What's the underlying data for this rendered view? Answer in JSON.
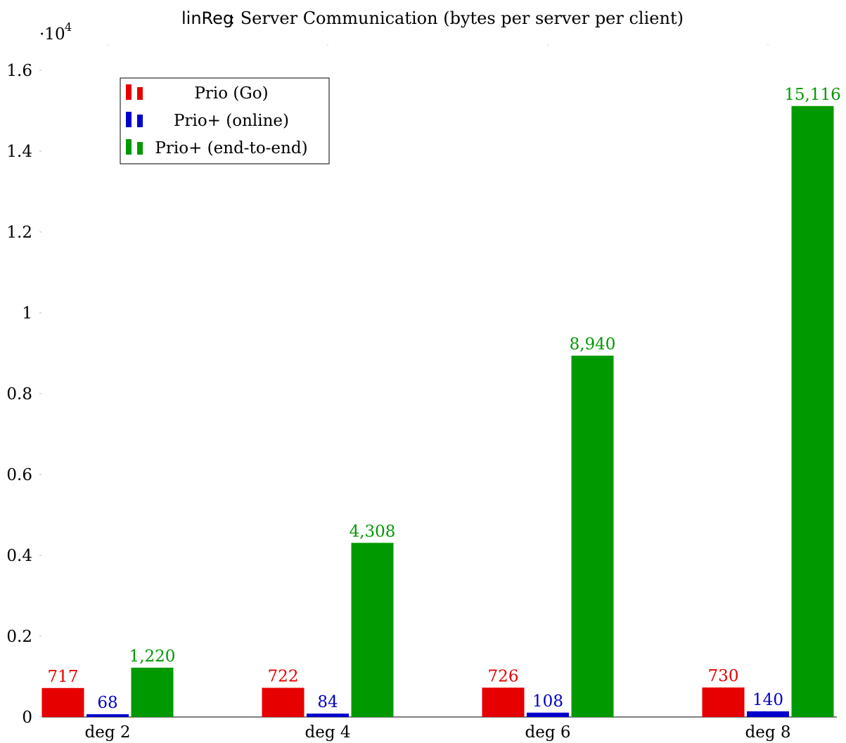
{
  "chart_data": {
    "type": "bar",
    "title_prefix": "linReg",
    "title_rest": ": Server Communication (bytes per server per client)",
    "scale_base": "·10",
    "scale_exp": "4",
    "categories": [
      "deg 2",
      "deg 4",
      "deg 6",
      "deg 8"
    ],
    "series": [
      {
        "name": "Prio (Go)",
        "color": "#e60000",
        "values": [
          717,
          722,
          726,
          730
        ],
        "labels": [
          "717",
          "722",
          "726",
          "730"
        ]
      },
      {
        "name": "Prio+ (online)",
        "color": "#0000cc",
        "values": [
          68,
          84,
          108,
          140
        ],
        "labels": [
          "68",
          "84",
          "108",
          "140"
        ]
      },
      {
        "name": "Prio+ (end-to-end)",
        "color": "#009900",
        "values": [
          1220,
          4308,
          8940,
          15116
        ],
        "labels": [
          "1,220",
          "4,308",
          "8,940",
          "15,116"
        ]
      }
    ],
    "yticks": [
      {
        "value": 0,
        "label": "0"
      },
      {
        "value": 2000,
        "label": "0.2"
      },
      {
        "value": 4000,
        "label": "0.4"
      },
      {
        "value": 6000,
        "label": "0.6"
      },
      {
        "value": 8000,
        "label": "0.8"
      },
      {
        "value": 10000,
        "label": "1"
      },
      {
        "value": 12000,
        "label": "1.2"
      },
      {
        "value": 14000,
        "label": "1.4"
      },
      {
        "value": 16000,
        "label": "1.6"
      }
    ],
    "ylim": [
      0,
      16500
    ],
    "xlabel": "",
    "ylabel": "",
    "grid": false,
    "legend_position": "top-left"
  }
}
